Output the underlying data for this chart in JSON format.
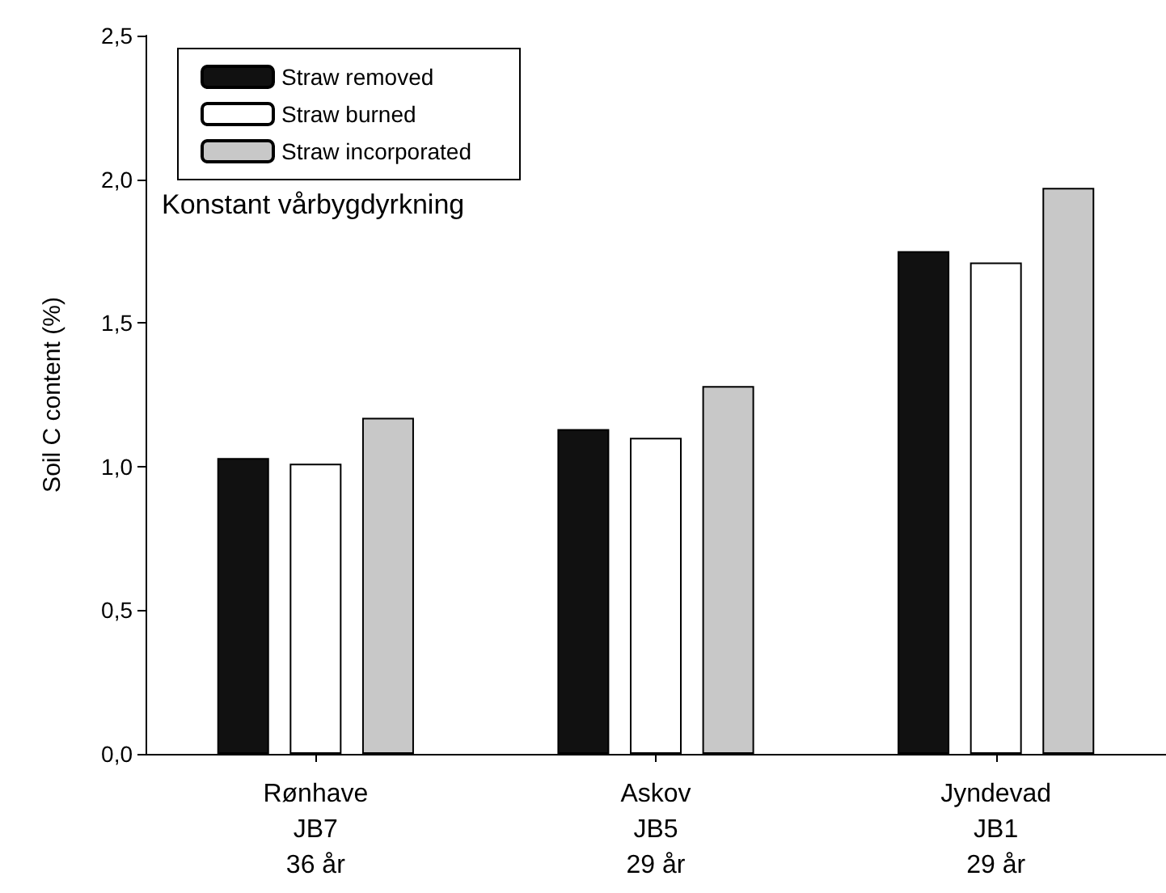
{
  "chart_data": {
    "type": "bar",
    "ylabel": "Soil C content (%)",
    "categories": [
      "Rønhave\nJB7\n36 år",
      "Askov\nJB5\n29 år",
      "Jyndevad\nJB1\n29 år"
    ],
    "series": [
      {
        "name": "Straw removed",
        "color": "#111111",
        "values": [
          1.03,
          1.13,
          1.75
        ]
      },
      {
        "name": "Straw burned",
        "color": "#ffffff",
        "values": [
          1.01,
          1.1,
          1.71
        ]
      },
      {
        "name": "Straw incorporated",
        "color": "#c8c8c8",
        "values": [
          1.17,
          1.28,
          1.97
        ]
      }
    ],
    "ylim": [
      0,
      2.5
    ],
    "yticks": [
      {
        "value": 0,
        "label": "0,0"
      },
      {
        "value": 0.5,
        "label": "0,5"
      },
      {
        "value": 1,
        "label": "1,0"
      },
      {
        "value": 1.5,
        "label": "1,5"
      },
      {
        "value": 2,
        "label": "2,0"
      },
      {
        "value": 2.5,
        "label": "2,5"
      }
    ],
    "annotations": [
      "Konstant vårbygdyrkning"
    ],
    "legend": "top left",
    "grid": false
  }
}
